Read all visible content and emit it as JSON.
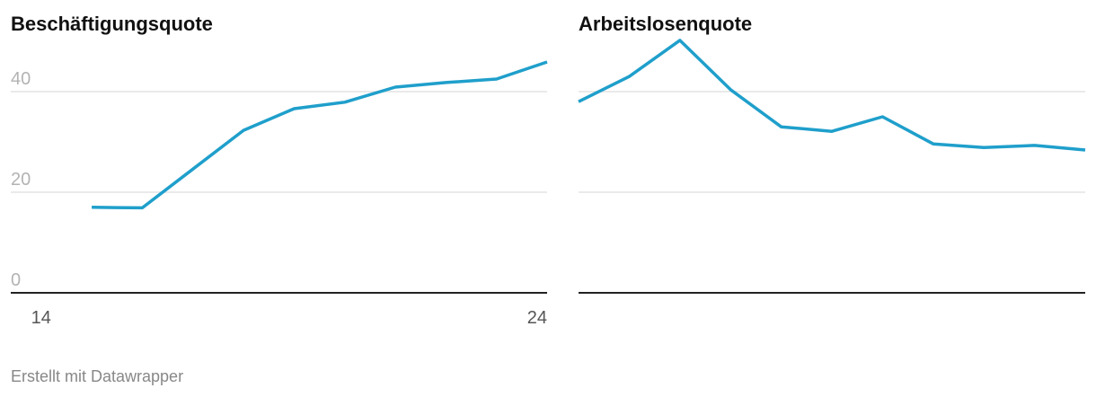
{
  "chart_data": [
    {
      "type": "line",
      "title": "Beschäftigungsquote",
      "x": [
        14,
        15,
        16,
        17,
        18,
        19,
        20,
        21,
        22,
        23,
        24
      ],
      "values": [
        null,
        17.0,
        16.9,
        24.6,
        32.3,
        36.6,
        37.9,
        40.9,
        41.8,
        42.5,
        45.9
      ],
      "color": "#1f9fcb",
      "xlim": [
        13.4,
        24
      ],
      "xticks": [
        14,
        24
      ],
      "ylim": [
        0,
        50
      ],
      "yticks": [
        0,
        20,
        40
      ],
      "grid": true,
      "ytick_labels": true
    },
    {
      "type": "line",
      "title": "Arbeitslosenquote",
      "x": [
        14,
        15,
        16,
        17,
        18,
        19,
        20,
        21,
        22,
        23,
        24
      ],
      "values": [
        38.0,
        43.0,
        50.2,
        40.4,
        33.0,
        32.1,
        35.0,
        29.6,
        28.9,
        29.3,
        28.4
      ],
      "color": "#1f9fcb",
      "xlim": [
        14,
        24
      ],
      "xticks": [],
      "ylim": [
        0,
        50
      ],
      "yticks": [
        0,
        20,
        40
      ],
      "grid": true,
      "ytick_labels": false
    }
  ],
  "footer": "Erstellt mit Datawrapper"
}
